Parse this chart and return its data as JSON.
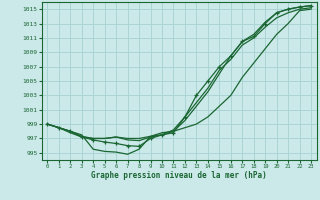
{
  "title": "Graphe pression niveau de la mer (hPa)",
  "xlabel": "Graphe pression niveau de la mer (hPa)",
  "bg_color": "#cce9e9",
  "grid_color": "#aad4d4",
  "line_color": "#1a6633",
  "text_color": "#1a6633",
  "ylim": [
    994.0,
    1016.0
  ],
  "xlim": [
    -0.5,
    23.5
  ],
  "yticks": [
    995,
    997,
    999,
    1001,
    1003,
    1005,
    1007,
    1009,
    1011,
    1013,
    1015
  ],
  "xticks": [
    0,
    1,
    2,
    3,
    4,
    5,
    6,
    7,
    8,
    9,
    10,
    11,
    12,
    13,
    14,
    15,
    16,
    17,
    18,
    19,
    20,
    21,
    22,
    23
  ],
  "series": [
    {
      "y": [
        999.0,
        998.5,
        998.0,
        997.5,
        995.5,
        995.2,
        995.1,
        994.8,
        995.5,
        997.3,
        997.8,
        998.0,
        998.5,
        999.0,
        1000.0,
        1001.5,
        1003.0,
        1005.5,
        1007.5,
        1009.5,
        1011.5,
        1013.0,
        1014.8,
        1015.0
      ],
      "marker": false
    },
    {
      "y": [
        999.0,
        998.5,
        997.8,
        997.2,
        997.0,
        997.0,
        997.2,
        997.0,
        997.0,
        997.3,
        997.5,
        998.2,
        1000.0,
        1002.0,
        1004.0,
        1006.5,
        1008.0,
        1010.0,
        1011.0,
        1012.5,
        1013.8,
        1014.5,
        1015.0,
        1015.2
      ],
      "marker": false
    },
    {
      "y": [
        999.0,
        998.5,
        998.0,
        997.3,
        997.0,
        997.0,
        997.2,
        996.8,
        996.7,
        997.2,
        997.5,
        998.0,
        999.5,
        1001.5,
        1003.5,
        1006.0,
        1008.5,
        1010.5,
        1011.5,
        1013.2,
        1014.5,
        1015.0,
        1015.3,
        1015.5
      ],
      "marker": false
    },
    {
      "y": [
        999.0,
        998.5,
        998.0,
        997.2,
        996.8,
        996.5,
        996.3,
        996.0,
        995.9,
        997.0,
        997.5,
        997.8,
        1000.0,
        1003.0,
        1005.0,
        1007.0,
        1008.5,
        1010.5,
        1011.2,
        1013.0,
        1014.5,
        1015.0,
        1015.3,
        1015.5
      ],
      "marker": true
    }
  ]
}
